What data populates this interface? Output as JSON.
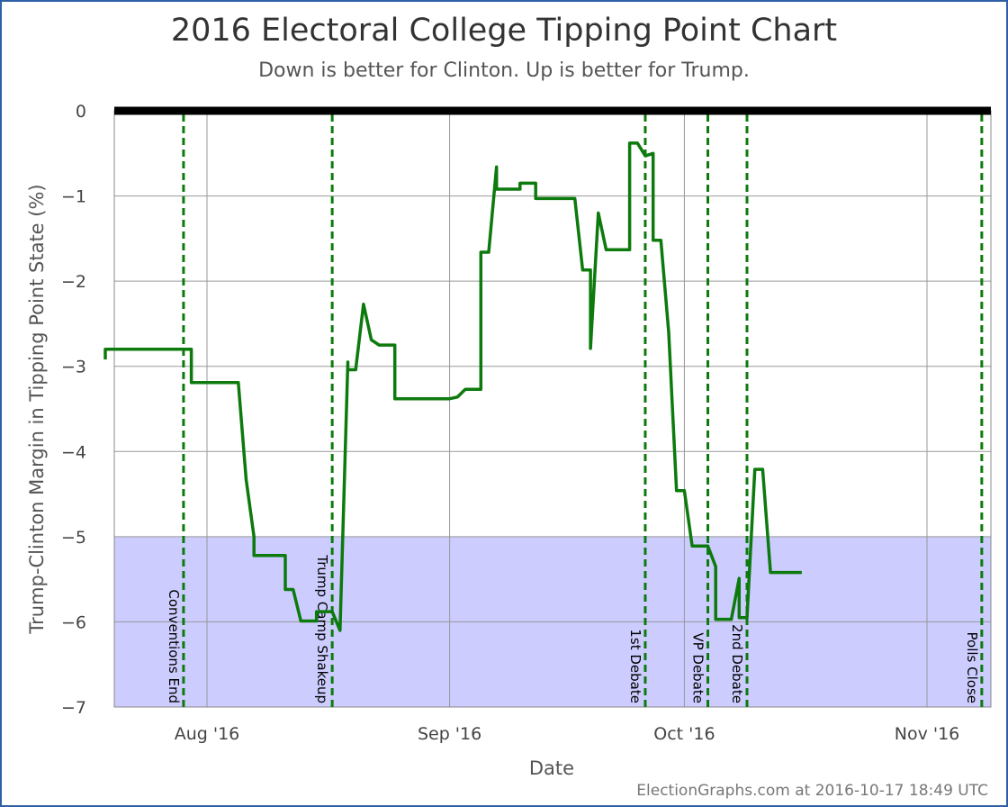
{
  "title": "2016 Electoral College Tipping Point Chart",
  "subtitle": "Down is better for Clinton. Up is better for Trump.",
  "footer": "ElectionGraphs.com at 2016-10-17 18:49 UTC",
  "colors": {
    "line": "#0d7a0d",
    "band": "#ccccff",
    "zero_line": "#000000",
    "event_line": "#0d7a0d",
    "grid": "#999999",
    "border": "#2f5fa5"
  },
  "chart_data": {
    "type": "line",
    "title": "2016 Electoral College Tipping Point Chart",
    "subtitle": "Down is better for Clinton. Up is better for Trump.",
    "xlabel": "Date",
    "ylabel": "Trump-Clinton Margin in Tipping Point State (%)",
    "xlim": [
      "2016-07-20",
      "2016-11-08"
    ],
    "ylim": [
      -7,
      0
    ],
    "yticks": [
      0,
      -1,
      -2,
      -3,
      -4,
      -5,
      -6,
      -7
    ],
    "xticks": [
      {
        "date": "2016-08-01",
        "label": "Aug '16"
      },
      {
        "date": "2016-09-01",
        "label": "Sep '16"
      },
      {
        "date": "2016-10-01",
        "label": "Oct '16"
      },
      {
        "date": "2016-11-01",
        "label": "Nov '16"
      }
    ],
    "grid": true,
    "shaded_band": {
      "from": -7,
      "to": -5
    },
    "events": [
      {
        "date": "2016-07-29",
        "label": "Conventions End"
      },
      {
        "date": "2016-08-17",
        "label": "Trump Camp Shakeup"
      },
      {
        "date": "2016-09-26",
        "label": "1st Debate"
      },
      {
        "date": "2016-10-04",
        "label": "VP Debate"
      },
      {
        "date": "2016-10-09",
        "label": "2nd Debate"
      },
      {
        "date": "2016-11-08",
        "label": "Polls Close"
      }
    ],
    "series": [
      {
        "points": [
          [
            "2016-07-19",
            -2.92
          ],
          [
            "2016-07-19",
            -2.8
          ],
          [
            "2016-07-30",
            -2.8
          ],
          [
            "2016-07-30",
            -3.19
          ],
          [
            "2016-08-05",
            -3.19
          ],
          [
            "2016-08-06",
            -4.33
          ],
          [
            "2016-08-07",
            -5.0
          ],
          [
            "2016-08-07",
            -5.22
          ],
          [
            "2016-08-11",
            -5.22
          ],
          [
            "2016-08-11",
            -5.62
          ],
          [
            "2016-08-12",
            -5.62
          ],
          [
            "2016-08-13",
            -5.99
          ],
          [
            "2016-08-15",
            -5.99
          ],
          [
            "2016-08-15",
            -5.88
          ],
          [
            "2016-08-17",
            -5.88
          ],
          [
            "2016-08-18",
            -6.1
          ],
          [
            "2016-08-19",
            -2.95
          ],
          [
            "2016-08-19",
            -3.04
          ],
          [
            "2016-08-20",
            -3.04
          ],
          [
            "2016-08-21",
            -2.27
          ],
          [
            "2016-08-22",
            -2.69
          ],
          [
            "2016-08-23",
            -2.75
          ],
          [
            "2016-08-25",
            -2.75
          ],
          [
            "2016-08-25",
            -3.38
          ],
          [
            "2016-09-01",
            -3.38
          ],
          [
            "2016-09-02",
            -3.36
          ],
          [
            "2016-09-03",
            -3.27
          ],
          [
            "2016-09-05",
            -3.27
          ],
          [
            "2016-09-05",
            -1.66
          ],
          [
            "2016-09-06",
            -1.66
          ],
          [
            "2016-09-07",
            -0.66
          ],
          [
            "2016-09-07",
            -0.92
          ],
          [
            "2016-09-10",
            -0.92
          ],
          [
            "2016-09-10",
            -0.85
          ],
          [
            "2016-09-12",
            -0.85
          ],
          [
            "2016-09-12",
            -1.03
          ],
          [
            "2016-09-17",
            -1.03
          ],
          [
            "2016-09-18",
            -1.87
          ],
          [
            "2016-09-19",
            -1.87
          ],
          [
            "2016-09-19",
            -2.79
          ],
          [
            "2016-09-20",
            -1.2
          ],
          [
            "2016-09-21",
            -1.63
          ],
          [
            "2016-09-24",
            -1.63
          ],
          [
            "2016-09-24",
            -0.38
          ],
          [
            "2016-09-25",
            -0.38
          ],
          [
            "2016-09-26",
            -0.53
          ],
          [
            "2016-09-26",
            -0.53
          ],
          [
            "2016-09-27",
            -0.5
          ],
          [
            "2016-09-27",
            -1.52
          ],
          [
            "2016-09-28",
            -1.52
          ],
          [
            "2016-09-29",
            -2.6
          ],
          [
            "2016-09-30",
            -4.46
          ],
          [
            "2016-10-01",
            -4.46
          ],
          [
            "2016-10-02",
            -5.11
          ],
          [
            "2016-10-04",
            -5.11
          ],
          [
            "2016-10-05",
            -5.35
          ],
          [
            "2016-10-05",
            -5.97
          ],
          [
            "2016-10-07",
            -5.97
          ],
          [
            "2016-10-08",
            -5.49
          ],
          [
            "2016-10-08",
            -5.95
          ],
          [
            "2016-10-09",
            -5.95
          ],
          [
            "2016-10-10",
            -4.21
          ],
          [
            "2016-10-11",
            -4.21
          ],
          [
            "2016-10-12",
            -5.42
          ],
          [
            "2016-10-16",
            -5.42
          ]
        ]
      }
    ]
  }
}
